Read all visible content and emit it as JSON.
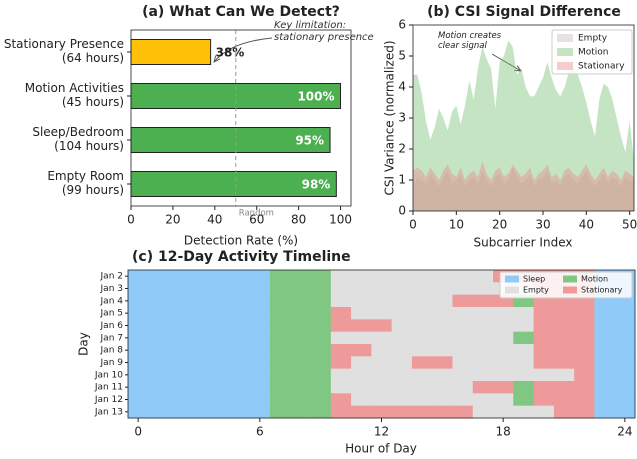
{
  "chart_data": [
    {
      "type": "bar",
      "orientation": "horizontal",
      "title": "(a) What Can We Detect?",
      "xlabel": "Detection Rate (%)",
      "categories": [
        "Stationary Presence\n(64 hours)",
        "Motion Activities\n(45 hours)",
        "Sleep/Bedroom\n(104 hours)",
        "Empty Room\n(99 hours)"
      ],
      "values": [
        38,
        100,
        95,
        98
      ],
      "value_labels": [
        "38%",
        "100%",
        "95%",
        "98%"
      ],
      "colors": [
        "#ffc107",
        "#4caf50",
        "#4caf50",
        "#4caf50"
      ],
      "xlim": [
        0,
        105
      ],
      "xticks": [
        0,
        20,
        40,
        60,
        80,
        100
      ],
      "reference_line": {
        "value": 50,
        "label": "Random"
      },
      "annotation": "Key limitation:\nstationary presence"
    },
    {
      "type": "area",
      "title": "(b) CSI Signal Difference",
      "xlabel": "Subcarrier Index",
      "ylabel": "CSI Variance (normalized)",
      "x": [
        0,
        1,
        2,
        3,
        4,
        5,
        6,
        7,
        8,
        9,
        10,
        11,
        12,
        13,
        14,
        15,
        16,
        17,
        18,
        19,
        20,
        21,
        22,
        23,
        24,
        25,
        26,
        27,
        28,
        29,
        30,
        31,
        32,
        33,
        34,
        35,
        36,
        37,
        38,
        39,
        40,
        41,
        42,
        43,
        44,
        45,
        46,
        47,
        48,
        49,
        50,
        51
      ],
      "series": [
        {
          "name": "Empty",
          "color": "#c9bcc6",
          "values": [
            0.8,
            1.1,
            1.0,
            0.9,
            1.2,
            1.0,
            0.8,
            1.1,
            1.3,
            0.9,
            1.0,
            1.2,
            0.8,
            1.0,
            1.1,
            0.9,
            1.3,
            1.0,
            0.8,
            1.1,
            1.2,
            0.9,
            1.0,
            1.4,
            1.1,
            0.9,
            1.0,
            1.2,
            0.8,
            1.0,
            1.1,
            1.3,
            0.9,
            1.0,
            0.8,
            1.1,
            1.2,
            1.0,
            0.9,
            1.1,
            1.3,
            1.0,
            0.8,
            1.0,
            1.2,
            0.9,
            1.1,
            1.0,
            0.8,
            1.1,
            1.0,
            0.9
          ]
        },
        {
          "name": "Motion",
          "color": "#7cc47c",
          "values": [
            4.4,
            4.4,
            3.8,
            2.9,
            2.3,
            2.7,
            3.3,
            3.0,
            2.6,
            3.2,
            3.4,
            2.8,
            3.4,
            4.2,
            3.6,
            4.6,
            5.3,
            4.9,
            4.6,
            3.3,
            4.8,
            5.0,
            5.5,
            5.3,
            4.4,
            4.6,
            4.0,
            3.7,
            3.7,
            4.0,
            4.3,
            4.8,
            4.3,
            3.9,
            3.7,
            4.0,
            4.5,
            4.6,
            4.4,
            4.0,
            3.5,
            2.9,
            2.4,
            3.6,
            4.1,
            4.0,
            3.6,
            3.0,
            2.4,
            1.9,
            2.9,
            1.6
          ]
        },
        {
          "name": "Stationary",
          "color": "#ee8f8f",
          "values": [
            1.3,
            1.4,
            1.3,
            1.1,
            1.4,
            1.2,
            1.0,
            1.3,
            1.5,
            1.2,
            1.1,
            1.4,
            1.0,
            1.2,
            1.3,
            1.1,
            1.6,
            1.2,
            1.0,
            1.3,
            1.4,
            1.1,
            1.2,
            1.5,
            1.3,
            1.1,
            1.2,
            1.4,
            1.0,
            1.2,
            1.3,
            1.5,
            1.1,
            1.2,
            1.0,
            1.3,
            1.4,
            1.2,
            1.1,
            1.3,
            1.5,
            1.2,
            1.0,
            1.2,
            1.4,
            1.1,
            1.3,
            1.2,
            1.0,
            1.3,
            1.2,
            1.1
          ]
        }
      ],
      "xlim": [
        0,
        51
      ],
      "xticks": [
        0,
        10,
        20,
        30,
        40,
        50
      ],
      "ylim": [
        0,
        6
      ],
      "yticks": [
        0,
        1,
        2,
        3,
        4,
        5,
        6
      ],
      "legend": "upper right",
      "annotation": "Motion creates\nclear signal"
    },
    {
      "type": "heatmap",
      "title": "(c) 12-Day Activity Timeline",
      "xlabel": "Hour of Day",
      "ylabel": "Day",
      "categories": [
        "Jan 2",
        "Jan 3",
        "Jan 4",
        "Jan 5",
        "Jan 6",
        "Jan 7",
        "Jan 8",
        "Jan 9",
        "Jan 10",
        "Jan 11",
        "Jan 12",
        "Jan 13"
      ],
      "x": [
        0,
        1,
        2,
        3,
        4,
        5,
        6,
        7,
        8,
        9,
        10,
        11,
        12,
        13,
        14,
        15,
        16,
        17,
        18,
        19,
        20,
        21,
        22,
        23,
        24
      ],
      "states": [
        {
          "name": "Sleep",
          "color": "#90caf9"
        },
        {
          "name": "Empty",
          "color": "#e0e0e0"
        },
        {
          "name": "Motion",
          "color": "#81c784"
        },
        {
          "name": "Stationary",
          "color": "#ef9a9a"
        }
      ],
      "z": [
        [
          0,
          0,
          0,
          0,
          0,
          0,
          0,
          2,
          2,
          2,
          1,
          1,
          1,
          1,
          1,
          1,
          1,
          1,
          3,
          3,
          3,
          3,
          3,
          0,
          0
        ],
        [
          0,
          0,
          0,
          0,
          0,
          0,
          0,
          2,
          2,
          2,
          1,
          1,
          1,
          1,
          1,
          1,
          1,
          1,
          1,
          1,
          3,
          3,
          3,
          0,
          0
        ],
        [
          0,
          0,
          0,
          0,
          0,
          0,
          0,
          2,
          2,
          2,
          1,
          1,
          1,
          1,
          1,
          1,
          3,
          3,
          3,
          2,
          3,
          3,
          3,
          0,
          0
        ],
        [
          0,
          0,
          0,
          0,
          0,
          0,
          0,
          2,
          2,
          2,
          3,
          1,
          1,
          1,
          1,
          1,
          1,
          1,
          1,
          1,
          3,
          3,
          3,
          0,
          0
        ],
        [
          0,
          0,
          0,
          0,
          0,
          0,
          0,
          2,
          2,
          2,
          3,
          3,
          3,
          1,
          1,
          1,
          1,
          1,
          1,
          1,
          3,
          3,
          3,
          0,
          0
        ],
        [
          0,
          0,
          0,
          0,
          0,
          0,
          0,
          2,
          2,
          2,
          1,
          1,
          1,
          1,
          1,
          1,
          1,
          1,
          1,
          2,
          3,
          3,
          3,
          0,
          0
        ],
        [
          0,
          0,
          0,
          0,
          0,
          0,
          0,
          2,
          2,
          2,
          3,
          3,
          1,
          1,
          1,
          1,
          1,
          1,
          1,
          1,
          3,
          3,
          3,
          0,
          0
        ],
        [
          0,
          0,
          0,
          0,
          0,
          0,
          0,
          2,
          2,
          2,
          3,
          1,
          1,
          1,
          3,
          3,
          1,
          1,
          1,
          1,
          3,
          3,
          3,
          0,
          0
        ],
        [
          0,
          0,
          0,
          0,
          0,
          0,
          0,
          2,
          2,
          2,
          1,
          1,
          1,
          1,
          1,
          1,
          1,
          1,
          1,
          1,
          1,
          1,
          3,
          0,
          0
        ],
        [
          0,
          0,
          0,
          0,
          0,
          0,
          0,
          2,
          2,
          2,
          1,
          1,
          1,
          1,
          1,
          1,
          1,
          3,
          3,
          2,
          3,
          3,
          3,
          0,
          0
        ],
        [
          0,
          0,
          0,
          0,
          0,
          0,
          0,
          2,
          2,
          2,
          3,
          1,
          1,
          1,
          1,
          1,
          1,
          1,
          1,
          2,
          3,
          3,
          3,
          0,
          0
        ],
        [
          0,
          0,
          0,
          0,
          0,
          0,
          0,
          2,
          2,
          2,
          3,
          3,
          3,
          3,
          3,
          3,
          3,
          1,
          1,
          1,
          1,
          3,
          3,
          0,
          0
        ]
      ],
      "xlim": [
        -0.5,
        24.5
      ],
      "xticks": [
        0,
        6,
        12,
        18,
        24
      ],
      "legend": "upper right"
    }
  ]
}
